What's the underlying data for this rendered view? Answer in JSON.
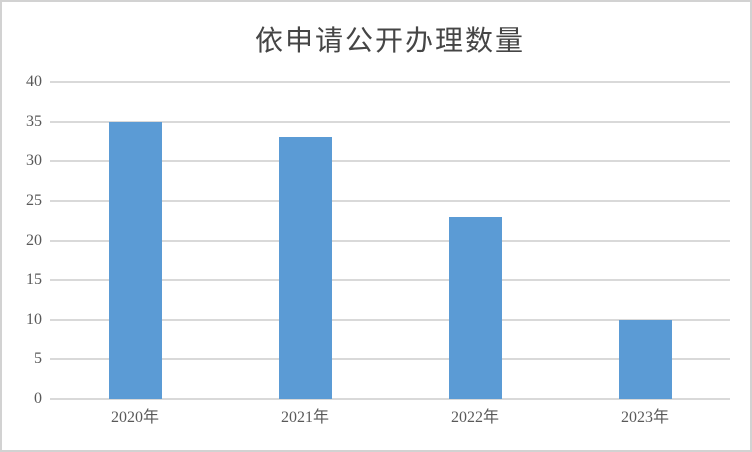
{
  "chart_data": {
    "type": "bar",
    "title": "依申请公开办理数量",
    "categories": [
      "2020年",
      "2021年",
      "2022年",
      "2023年"
    ],
    "values": [
      35,
      33,
      23,
      10
    ],
    "xlabel": "",
    "ylabel": "",
    "ylim": [
      0,
      40
    ],
    "yticks": [
      0,
      5,
      10,
      15,
      20,
      25,
      30,
      35,
      40
    ],
    "grid": "horizontal",
    "legend": "none",
    "colors": {
      "bar": "#5B9BD5",
      "gridline": "#D9D9D9",
      "axis_line": "#D9D9D9",
      "tick_label": "#595959",
      "title": "#454545",
      "frame_border": "#D2D2D2",
      "background": "#FFFFFF"
    }
  }
}
